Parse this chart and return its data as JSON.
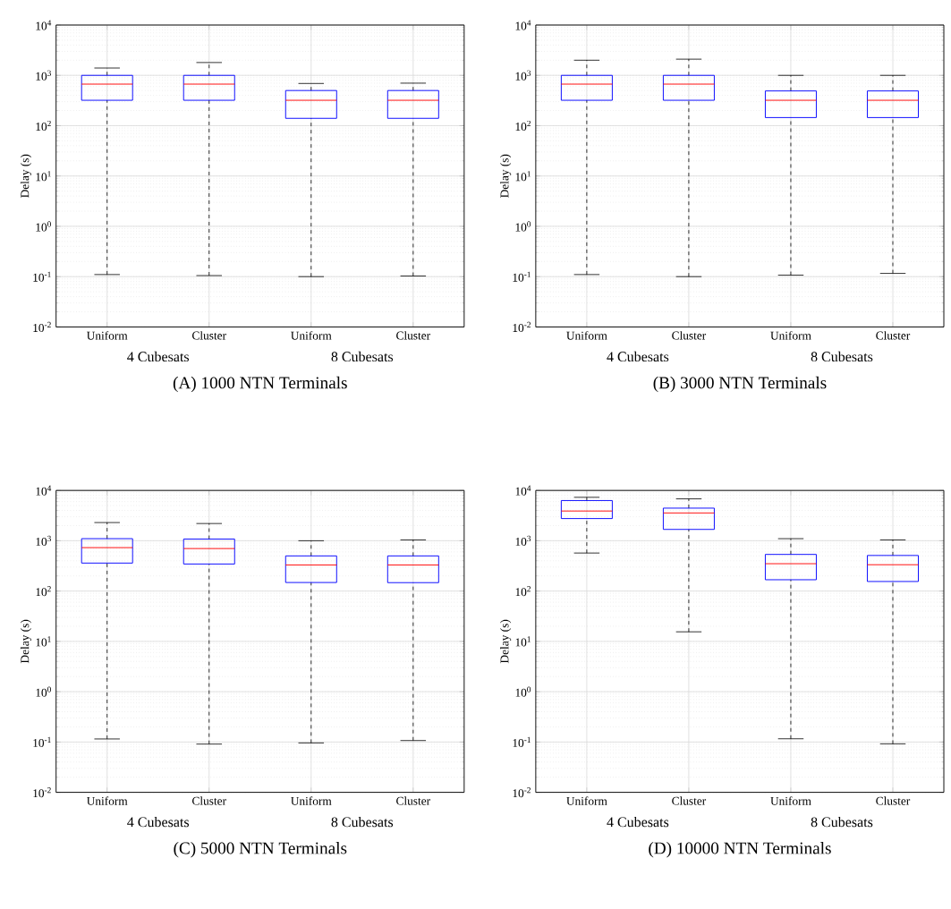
{
  "chart_data": [
    {
      "type": "box",
      "title": "(A) 1000 NTN Terminals",
      "ylabel": "Delay (s)",
      "categories": [
        "Uniform",
        "Cluster",
        "Uniform",
        "Cluster"
      ],
      "annotations": [
        "4 Cubesats",
        "8 Cubesats"
      ],
      "log": true,
      "grid": true,
      "ylim": [
        0.01,
        10000
      ],
      "yticks": [
        {
          "value": 0.01,
          "label": "10$^{-2}$"
        },
        {
          "value": 0.1,
          "label": "10$^{-1}$"
        },
        {
          "value": 1,
          "label": "10$^{0}$"
        },
        {
          "value": 10,
          "label": "10$^{1}$"
        },
        {
          "value": 100,
          "label": "10$^{2}$"
        },
        {
          "value": 1000,
          "label": "10$^{3}$"
        },
        {
          "value": 10000,
          "label": "10$^{4}$"
        }
      ],
      "series": [
        {
          "color": "#0000ff",
          "boxes": [
            {
              "low": 0.11,
              "q1": 320,
              "median": 670,
              "q3": 1000,
              "high": 1400
            },
            {
              "low": 0.105,
              "q1": 320,
              "median": 670,
              "q3": 1000,
              "high": 1800
            },
            {
              "low": 0.1,
              "q1": 140,
              "median": 320,
              "q3": 500,
              "high": 690
            },
            {
              "low": 0.103,
              "q1": 140,
              "median": 320,
              "q3": 500,
              "high": 700
            }
          ]
        }
      ]
    },
    {
      "type": "box",
      "title": "(B) 3000 NTN Terminals",
      "ylabel": "Delay (s)",
      "categories": [
        "Uniform",
        "Cluster",
        "Uniform",
        "Cluster"
      ],
      "annotations": [
        "4 Cubesats",
        "8 Cubesats"
      ],
      "log": true,
      "grid": true,
      "ylim": [
        0.01,
        10000
      ],
      "yticks": [
        {
          "value": 0.01,
          "label": "10$^{-2}$"
        },
        {
          "value": 0.1,
          "label": "10$^{-1}$"
        },
        {
          "value": 1,
          "label": "10$^{0}$"
        },
        {
          "value": 10,
          "label": "10$^{1}$"
        },
        {
          "value": 100,
          "label": "10$^{2}$"
        },
        {
          "value": 1000,
          "label": "10$^{3}$"
        },
        {
          "value": 10000,
          "label": "10$^{4}$"
        }
      ],
      "series": [
        {
          "color": "#0000ff",
          "boxes": [
            {
              "low": 0.11,
              "q1": 320,
              "median": 670,
              "q3": 1000,
              "high": 2000
            },
            {
              "low": 0.1,
              "q1": 320,
              "median": 670,
              "q3": 1000,
              "high": 2100
            },
            {
              "low": 0.107,
              "q1": 145,
              "median": 320,
              "q3": 490,
              "high": 1000
            },
            {
              "low": 0.116,
              "q1": 145,
              "median": 320,
              "q3": 490,
              "high": 1000
            }
          ]
        }
      ]
    },
    {
      "type": "box",
      "title": "(C) 5000 NTN Terminals",
      "ylabel": "Delay (s)",
      "categories": [
        "Uniform",
        "Cluster",
        "Uniform",
        "Cluster"
      ],
      "annotations": [
        "4 Cubesats",
        "8 Cubesats"
      ],
      "log": true,
      "grid": true,
      "ylim": [
        0.01,
        10000
      ],
      "yticks": [
        {
          "value": 0.01,
          "label": "10$^{-2}$"
        },
        {
          "value": 0.1,
          "label": "10$^{-1}$"
        },
        {
          "value": 1,
          "label": "10$^{0}$"
        },
        {
          "value": 10,
          "label": "10$^{1}$"
        },
        {
          "value": 100,
          "label": "10$^{2}$"
        },
        {
          "value": 1000,
          "label": "10$^{3}$"
        },
        {
          "value": 10000,
          "label": "10$^{4}$"
        }
      ],
      "series": [
        {
          "color": "#0000ff",
          "boxes": [
            {
              "low": 0.115,
              "q1": 360,
              "median": 730,
              "q3": 1100,
              "high": 2300
            },
            {
              "low": 0.091,
              "q1": 345,
              "median": 700,
              "q3": 1080,
              "high": 2200
            },
            {
              "low": 0.096,
              "q1": 148,
              "median": 330,
              "q3": 500,
              "high": 1000
            },
            {
              "low": 0.107,
              "q1": 147,
              "median": 330,
              "q3": 500,
              "high": 1040
            }
          ]
        }
      ]
    },
    {
      "type": "box",
      "title": "(D) 10000 NTN Terminals",
      "ylabel": "Delay (s)",
      "categories": [
        "Uniform",
        "Cluster",
        "Uniform",
        "Cluster"
      ],
      "annotations": [
        "4 Cubesats",
        "8 Cubesats"
      ],
      "log": true,
      "grid": true,
      "ylim": [
        0.01,
        10000
      ],
      "yticks": [
        {
          "value": 0.01,
          "label": "10$^{-2}$"
        },
        {
          "value": 0.1,
          "label": "10$^{-1}$"
        },
        {
          "value": 1,
          "label": "10$^{0}$"
        },
        {
          "value": 10,
          "label": "10$^{1}$"
        },
        {
          "value": 100,
          "label": "10$^{2}$"
        },
        {
          "value": 1000,
          "label": "10$^{3}$"
        },
        {
          "value": 10000,
          "label": "10$^{4}$"
        }
      ],
      "series": [
        {
          "color": "#0000ff",
          "boxes": [
            {
              "low": 570,
              "q1": 2760,
              "median": 3900,
              "q3": 6300,
              "high": 7300
            },
            {
              "low": 15.5,
              "q1": 1680,
              "median": 3570,
              "q3": 4450,
              "high": 6800
            },
            {
              "low": 0.116,
              "q1": 168,
              "median": 350,
              "q3": 535,
              "high": 1100
            },
            {
              "low": 0.092,
              "q1": 155,
              "median": 334,
              "q3": 510,
              "high": 1040
            }
          ]
        }
      ]
    }
  ]
}
